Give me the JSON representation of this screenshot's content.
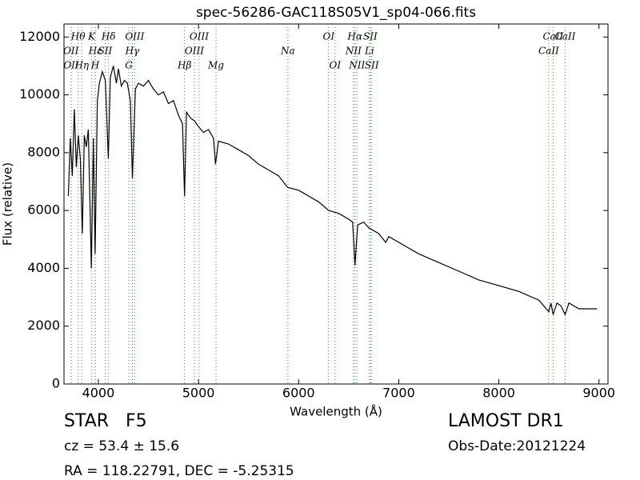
{
  "chart_data": {
    "type": "line",
    "title": "spec-56286-GAC118S05V1_sp04-066.fits",
    "xlabel": "Wavelength (Å)",
    "ylabel": "Flux (relative)",
    "color": "#000000",
    "marker_color": "#2ca02c",
    "xlim": [
      3657,
      9090
    ],
    "ylim": [
      0,
      12450
    ],
    "xticks": [
      4000,
      5000,
      6000,
      7000,
      8000,
      9000
    ],
    "yticks": [
      0,
      2000,
      4000,
      6000,
      8000,
      10000,
      12000
    ],
    "x": [
      3700,
      3720,
      3740,
      3760,
      3780,
      3800,
      3820,
      3840,
      3860,
      3880,
      3900,
      3930,
      3950,
      3968,
      3990,
      4010,
      4040,
      4070,
      4100,
      4120,
      4150,
      4180,
      4200,
      4230,
      4260,
      4290,
      4320,
      4340,
      4370,
      4400,
      4450,
      4500,
      4550,
      4600,
      4650,
      4700,
      4750,
      4800,
      4840,
      4861,
      4880,
      4920,
      4960,
      5000,
      5050,
      5100,
      5150,
      5170,
      5200,
      5300,
      5400,
      5500,
      5600,
      5700,
      5800,
      5890,
      6000,
      6100,
      6200,
      6300,
      6400,
      6500,
      6540,
      6563,
      6590,
      6650,
      6700,
      6800,
      6870,
      6900,
      7000,
      7200,
      7400,
      7600,
      7800,
      8000,
      8200,
      8400,
      8498,
      8520,
      8542,
      8580,
      8620,
      8662,
      8700,
      8800,
      8900,
      8980
    ],
    "values": [
      6500,
      8500,
      7200,
      9500,
      7500,
      8600,
      7800,
      5200,
      8600,
      8200,
      8800,
      4000,
      8500,
      4500,
      9800,
      10400,
      10800,
      10500,
      7800,
      10600,
      11000,
      10400,
      10900,
      10300,
      10500,
      10400,
      9800,
      7100,
      10200,
      10400,
      10300,
      10500,
      10200,
      10000,
      10100,
      9700,
      9800,
      9300,
      9000,
      6500,
      9400,
      9200,
      9100,
      8900,
      8700,
      8800,
      8500,
      7600,
      8400,
      8300,
      8100,
      7900,
      7600,
      7400,
      7200,
      6800,
      6700,
      6500,
      6300,
      6000,
      5900,
      5700,
      5600,
      4100,
      5500,
      5600,
      5400,
      5200,
      4900,
      5100,
      4900,
      4500,
      4200,
      3900,
      3600,
      3400,
      3200,
      2900,
      2500,
      2800,
      2400,
      2800,
      2700,
      2400,
      2800,
      2600,
      2600,
      2600
    ],
    "line_markers": [
      {
        "label": "Hθ",
        "wavelength": 3798
      },
      {
        "label": "OII",
        "wavelength": 3727
      },
      {
        "label": "OII",
        "wavelength": 3729
      },
      {
        "label": "K",
        "wavelength": 3934
      },
      {
        "label": "Hε",
        "wavelength": 3970
      },
      {
        "label": "Hη",
        "wavelength": 3835
      },
      {
        "label": "Hδ",
        "wavelength": 4102
      },
      {
        "label": "SII",
        "wavelength": 4068
      },
      {
        "label": "H",
        "wavelength": 3968
      },
      {
        "label": "OIII",
        "wavelength": 4363
      },
      {
        "label": "Hγ",
        "wavelength": 4340
      },
      {
        "label": "G",
        "wavelength": 4305
      },
      {
        "label": "OIII",
        "wavelength": 5007
      },
      {
        "label": "OIII",
        "wavelength": 4959
      },
      {
        "label": "Hβ",
        "wavelength": 4861
      },
      {
        "label": "OI",
        "wavelength": 6300
      },
      {
        "label": "Na",
        "wavelength": 5893
      },
      {
        "label": "Mg",
        "wavelength": 5175
      },
      {
        "label": "Hα",
        "wavelength": 6563
      },
      {
        "label": "NII",
        "wavelength": 6548
      },
      {
        "label": "OI",
        "wavelength": 6364
      },
      {
        "label": "SII",
        "wavelength": 6716
      },
      {
        "label": "Li",
        "wavelength": 6708
      },
      {
        "label": "NII",
        "wavelength": 6583
      },
      {
        "label": "CaII",
        "wavelength": 8542
      },
      {
        "label": "CaII",
        "wavelength": 8498
      },
      {
        "label": "SII",
        "wavelength": 6731
      },
      {
        "label": "CaII",
        "wavelength": 8662
      }
    ],
    "footer": {
      "class": "STAR   F5",
      "cz": "cz = 53.4 ± 15.6",
      "coords": "RA = 118.22791, DEC = -5.25315",
      "survey": "LAMOST DR1",
      "date": "Obs-Date:20121224"
    }
  }
}
